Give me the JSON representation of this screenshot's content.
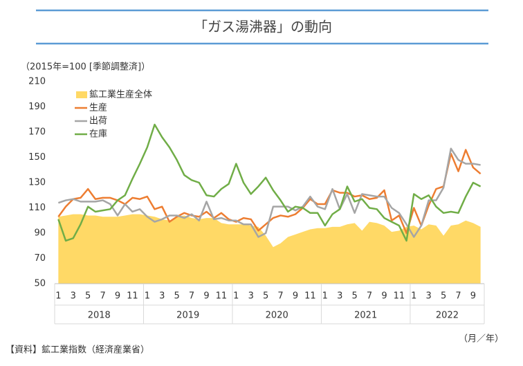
{
  "chart_data": {
    "type": "line",
    "title": "「ガス湯沸器」の動向",
    "y_label": "（2015年=100 [季節調整済]）",
    "x_unit": "（月／年）",
    "source": "【資料】鉱工業指数（経済産業省）",
    "ylim": [
      50,
      210
    ],
    "yticks": [
      50,
      70,
      90,
      110,
      130,
      150,
      170,
      190,
      210
    ],
    "categories": [
      "1",
      null,
      "3",
      null,
      "5",
      null,
      "7",
      null,
      "9",
      null,
      "11",
      null,
      "1",
      null,
      "3",
      null,
      "5",
      null,
      "7",
      null,
      "9",
      null,
      "11",
      null,
      "1",
      null,
      "3",
      null,
      "5",
      null,
      "7",
      null,
      "9",
      null,
      "11",
      null,
      "1",
      null,
      "3",
      null,
      "5",
      null,
      "7",
      null,
      "9",
      null,
      "11",
      null,
      "1",
      null,
      "3",
      null,
      "5",
      null,
      "7",
      null,
      "9",
      null
    ],
    "years": [
      "2018",
      "2019",
      "2020",
      "2021",
      "2022"
    ],
    "legend": "top-left",
    "series": [
      {
        "name": "鉱工業生産全体",
        "color": "#ffd966",
        "kind": "area",
        "values": [
          103,
          104,
          105,
          105,
          104,
          104,
          103,
          103,
          103,
          104,
          105,
          105,
          104,
          103,
          101,
          100,
          103,
          104,
          102,
          101,
          102,
          102,
          98,
          97,
          97,
          97,
          96,
          95,
          88,
          79,
          82,
          87,
          89,
          91,
          93,
          94,
          94,
          95,
          95,
          97,
          98,
          92,
          99,
          98,
          96,
          91,
          92,
          95,
          96,
          93,
          97,
          96,
          88,
          96,
          97,
          100,
          98,
          95
        ]
      },
      {
        "name": "生産",
        "color": "#ed7d31",
        "kind": "line",
        "values": [
          103,
          111,
          117,
          118,
          125,
          117,
          118,
          118,
          116,
          113,
          118,
          117,
          119,
          109,
          111,
          99,
          103,
          106,
          104,
          103,
          107,
          102,
          106,
          101,
          99,
          102,
          101,
          92,
          97,
          102,
          104,
          103,
          105,
          110,
          117,
          113,
          113,
          124,
          122,
          122,
          119,
          120,
          117,
          118,
          124,
          100,
          104,
          90,
          110,
          96,
          112,
          125,
          127,
          153,
          139,
          156,
          142,
          137
        ]
      },
      {
        "name": "出荷",
        "color": "#a5a5a5",
        "kind": "line",
        "values": [
          114,
          116,
          117,
          115,
          115,
          115,
          116,
          113,
          104,
          113,
          107,
          109,
          103,
          99,
          101,
          104,
          104,
          102,
          105,
          100,
          115,
          101,
          102,
          100,
          100,
          97,
          97,
          87,
          90,
          111,
          111,
          111,
          108,
          111,
          119,
          111,
          109,
          125,
          109,
          121,
          106,
          121,
          120,
          119,
          119,
          110,
          106,
          97,
          87,
          96,
          116,
          116,
          126,
          157,
          148,
          145,
          145,
          144
        ]
      },
      {
        "name": "在庫",
        "color": "#70ad47",
        "kind": "line",
        "values": [
          101,
          84,
          86,
          97,
          111,
          107,
          108,
          109,
          116,
          120,
          133,
          145,
          158,
          176,
          166,
          158,
          148,
          136,
          132,
          130,
          120,
          119,
          125,
          129,
          145,
          130,
          121,
          127,
          134,
          124,
          116,
          107,
          111,
          110,
          106,
          106,
          96,
          105,
          109,
          127,
          115,
          117,
          110,
          109,
          102,
          99,
          96,
          84,
          121,
          117,
          120,
          111,
          106,
          107,
          106,
          119,
          130,
          127
        ]
      }
    ]
  }
}
